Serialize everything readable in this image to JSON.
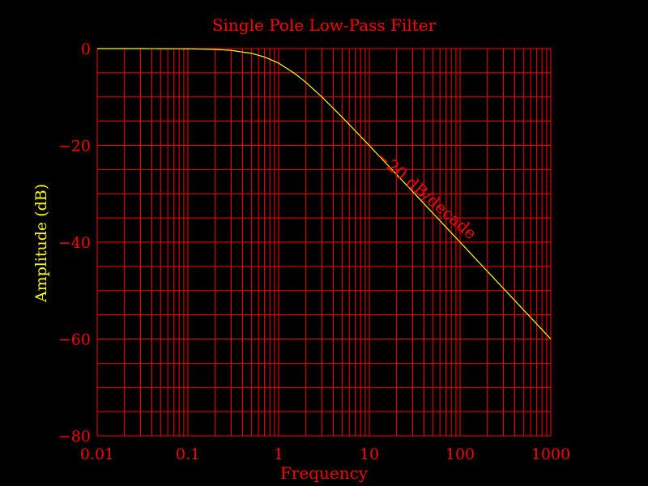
{
  "chart_data": {
    "type": "line",
    "title": "Single Pole Low-Pass Filter",
    "xlabel": "Frequency",
    "ylabel": "Amplitude (dB)",
    "xscale": "log",
    "xlim": [
      0.01,
      1000
    ],
    "ylim": [
      -80,
      0
    ],
    "xticks": [
      0.01,
      0.1,
      1,
      10,
      100,
      1000
    ],
    "xtick_labels": [
      "0.01",
      "0.1",
      "1",
      "10",
      "100",
      "1000"
    ],
    "yticks": [
      0,
      -20,
      -40,
      -60,
      -80
    ],
    "ytick_labels": [
      "0",
      "−20",
      "−40",
      "−60",
      "−80"
    ],
    "grid": true,
    "annotation": "−20 dB/decade",
    "colors": {
      "background": "#000000",
      "grid": "#ff0000",
      "text": "#ff0000",
      "ylabel": "#ffff00",
      "line": "#ffff00"
    },
    "series": [
      {
        "x": [
          0.01,
          0.03,
          0.1,
          0.2,
          0.3,
          0.5,
          0.7,
          1,
          1.5,
          2,
          3,
          5,
          7,
          10,
          20,
          30,
          50,
          70,
          100,
          200,
          300,
          500,
          700,
          1000
        ],
        "values": [
          0,
          0,
          -0.04,
          -0.17,
          -0.37,
          -0.97,
          -1.74,
          -3.01,
          -5.12,
          -6.99,
          -10.0,
          -14.15,
          -17.0,
          -20.04,
          -26.03,
          -29.54,
          -33.98,
          -36.9,
          -40.0,
          -46.02,
          -49.54,
          -53.98,
          -56.9,
          -60.0
        ]
      }
    ]
  }
}
